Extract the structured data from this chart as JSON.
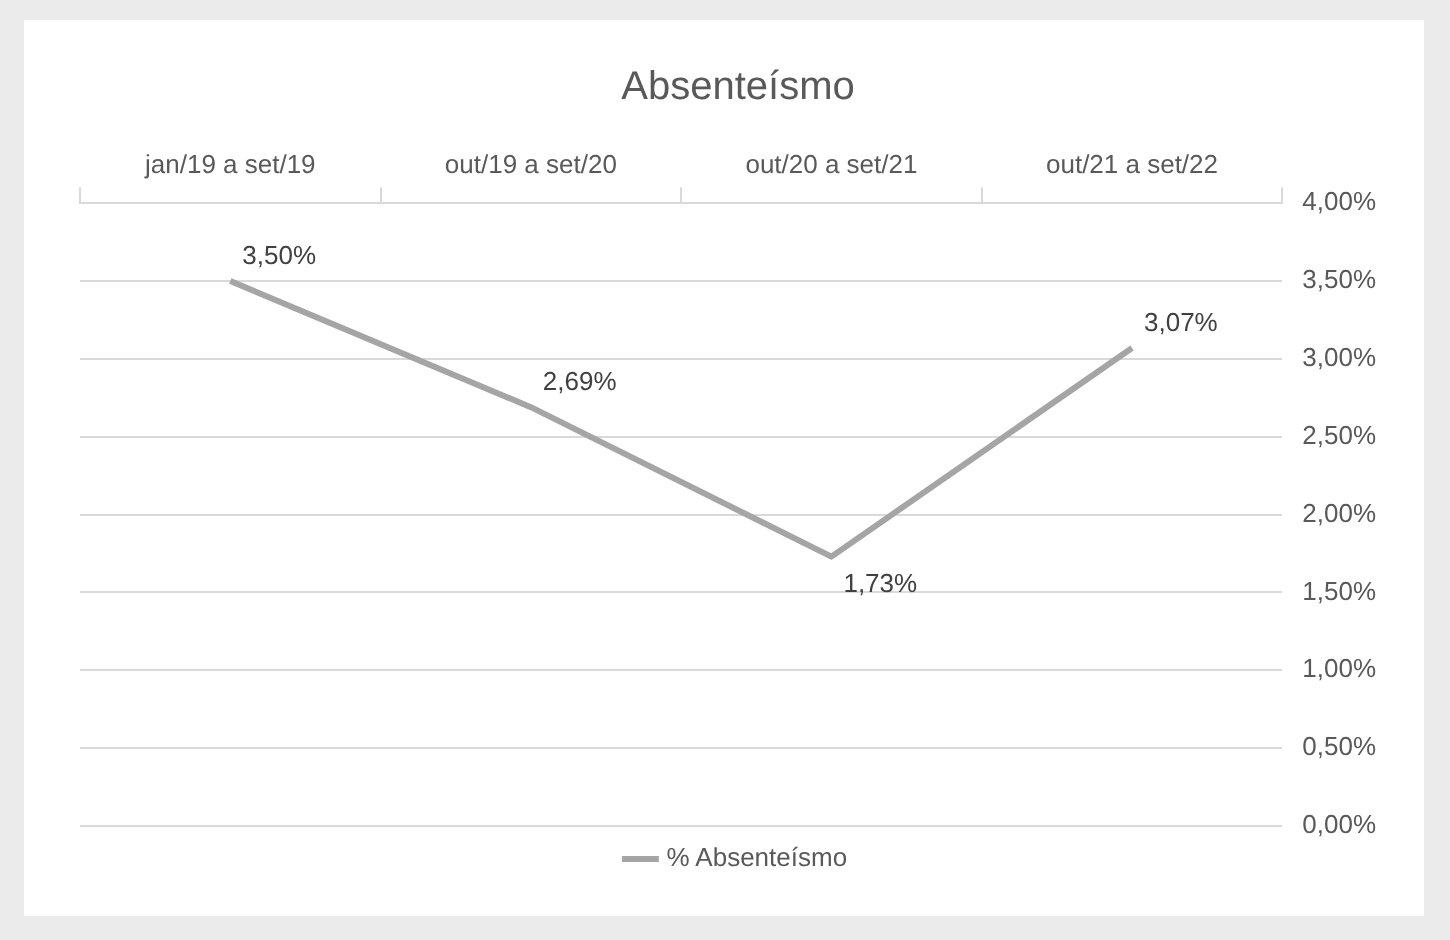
{
  "chart_data": {
    "type": "line",
    "title": "Absenteísmo",
    "categories": [
      "jan/19 a set/19",
      "out/19 a set/20",
      "out/20 a set/21",
      "out/21 a set/22"
    ],
    "series": [
      {
        "name": "% Absenteísmo",
        "color": "#a5a5a5",
        "values": [
          3.5,
          2.69,
          1.73,
          3.07
        ],
        "value_labels": [
          "3,50%",
          "2,69%",
          "1,73%",
          "3,07%"
        ]
      }
    ],
    "ylim": [
      0,
      4
    ],
    "yticks": [
      {
        "value": 0,
        "label": "0,00%"
      },
      {
        "value": 0.5,
        "label": "0,50%"
      },
      {
        "value": 1,
        "label": "1,00%"
      },
      {
        "value": 1.5,
        "label": "1,50%"
      },
      {
        "value": 2,
        "label": "2,00%"
      },
      {
        "value": 2.5,
        "label": "2,50%"
      },
      {
        "value": 3,
        "label": "3,00%"
      },
      {
        "value": 3.5,
        "label": "3,50%"
      },
      {
        "value": 4,
        "label": "4,00%"
      }
    ],
    "grid": "y",
    "legend": "bottom",
    "marker": "none",
    "line_style": "solid"
  }
}
